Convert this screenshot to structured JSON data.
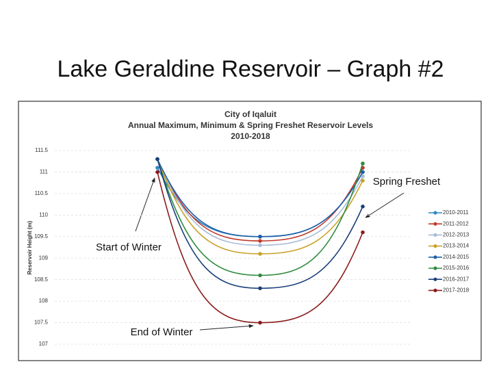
{
  "heading": "Lake Geraldine Reservoir – Graph #2",
  "chart_data": {
    "type": "line",
    "title": "City of Iqaluit",
    "subtitle": [
      "Annual Maximum, Minimum & Spring Freshet Reservoir Levels",
      "2010-2018"
    ],
    "y_label": "Reservoir Height (m)",
    "categories": [
      null,
      null,
      null
    ],
    "ylim": [
      107,
      111.5
    ],
    "yticks": [
      107,
      107.5,
      108,
      108.5,
      109,
      109.5,
      110,
      110.5,
      111,
      111.5
    ],
    "grid": true,
    "legend": "right",
    "smooth": true,
    "annotations": [
      "Start of Winter",
      "End of Winter",
      "Spring Freshet"
    ],
    "series": [
      {
        "name": "2010-2011",
        "color": "#2e86c1",
        "values": [
          111.1,
          109.5,
          111.0
        ]
      },
      {
        "name": "2011-2012",
        "color": "#c0392b",
        "values": [
          111.3,
          109.4,
          111.1
        ]
      },
      {
        "name": "2012-2013",
        "color": "#a9bcd6",
        "values": [
          111.3,
          109.3,
          110.9
        ]
      },
      {
        "name": "2013-2014",
        "color": "#c9a227",
        "values": [
          111.3,
          109.1,
          110.8
        ]
      },
      {
        "name": "2014-2015",
        "color": "#1f5fa8",
        "values": [
          111.3,
          109.5,
          111.0
        ]
      },
      {
        "name": "2015-2016",
        "color": "#2e8b3e",
        "values": [
          111.3,
          108.6,
          111.2
        ]
      },
      {
        "name": "2016-2017",
        "color": "#1a3f7a",
        "values": [
          111.3,
          108.3,
          110.2
        ]
      },
      {
        "name": "2017-2018",
        "color": "#8b1a1a",
        "values": [
          111.0,
          107.5,
          109.6
        ]
      }
    ]
  }
}
